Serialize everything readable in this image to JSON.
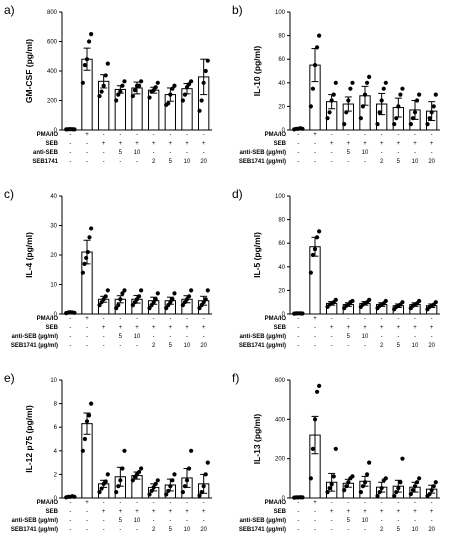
{
  "row_labels_full": [
    "PMA/IO",
    "SEB",
    "anti-SEB (µg/ml)",
    "SEB1741 (µg/ml)"
  ],
  "row_labels_short": [
    "PMA/IO",
    "SEB",
    "anti-SEB",
    "SEB1741"
  ],
  "treatment_table": [
    [
      "-",
      "+",
      "-",
      "-",
      "-",
      "-",
      "-",
      "-",
      "-"
    ],
    [
      "-",
      "-",
      "+",
      "+",
      "+",
      "+",
      "+",
      "+",
      "+"
    ],
    [
      "-",
      "-",
      "-",
      "5",
      "10",
      "-",
      "-",
      "-",
      "-"
    ],
    [
      "-",
      "-",
      "-",
      "-",
      "-",
      "2",
      "5",
      "10",
      "20"
    ]
  ],
  "chart_data": [
    {
      "panel": "a)",
      "type": "bar",
      "ylabel": "GM-CSF (pg/ml)",
      "ylim": [
        0,
        800
      ],
      "yticks": [
        0,
        200,
        400,
        600,
        800
      ],
      "rows": "short",
      "values": [
        5,
        480,
        330,
        275,
        285,
        270,
        240,
        280,
        360
      ],
      "errors": [
        2,
        75,
        45,
        25,
        40,
        20,
        45,
        35,
        120
      ],
      "points": [
        [
          4,
          5,
          6,
          5,
          4
        ],
        [
          320,
          440,
          480,
          600,
          650
        ],
        [
          230,
          260,
          300,
          370,
          450
        ],
        [
          200,
          240,
          260,
          300,
          330
        ],
        [
          230,
          270,
          300,
          300,
          330
        ],
        [
          220,
          260,
          270,
          290,
          320
        ],
        [
          170,
          180,
          240,
          280,
          300
        ],
        [
          200,
          240,
          290,
          310,
          330
        ],
        [
          130,
          200,
          320,
          400,
          470
        ]
      ]
    },
    {
      "panel": "b)",
      "type": "bar",
      "ylabel": "IL-10 (pg/ml)",
      "ylim": [
        0,
        100
      ],
      "yticks": [
        0,
        20,
        40,
        60,
        80,
        100
      ],
      "rows": "full",
      "values": [
        1,
        55,
        24,
        22,
        29,
        22,
        19,
        17,
        16
      ],
      "errors": [
        0.5,
        14,
        6,
        6,
        8,
        9,
        8,
        8,
        8
      ],
      "points": [
        [
          0.5,
          1,
          1,
          1.5,
          1
        ],
        [
          20,
          35,
          55,
          70,
          80
        ],
        [
          10,
          15,
          25,
          30,
          40
        ],
        [
          5,
          15,
          25,
          35,
          40
        ],
        [
          10,
          20,
          30,
          40,
          45
        ],
        [
          5,
          15,
          25,
          35,
          40
        ],
        [
          5,
          10,
          20,
          30,
          35
        ],
        [
          5,
          10,
          15,
          25,
          30
        ],
        [
          5,
          10,
          15,
          20,
          30
        ]
      ]
    },
    {
      "panel": "c)",
      "type": "bar",
      "ylabel": "IL-4 (pg/ml)",
      "ylim": [
        0,
        40
      ],
      "yticks": [
        0,
        10,
        20,
        30,
        40
      ],
      "rows": "full",
      "values": [
        0.5,
        21,
        5,
        5,
        5,
        4.5,
        4.5,
        5,
        4.5
      ],
      "errors": [
        0.2,
        4,
        1,
        1.2,
        1.3,
        1.2,
        1.2,
        1.2,
        1.5
      ],
      "points": [
        [
          0.3,
          0.5,
          0.6,
          0.5,
          0.4
        ],
        [
          14,
          17,
          19,
          21,
          26,
          29
        ],
        [
          3,
          4,
          5,
          6,
          8
        ],
        [
          2,
          3,
          5,
          7,
          8
        ],
        [
          3,
          4,
          5,
          6,
          8
        ],
        [
          2,
          3,
          4,
          5,
          7
        ],
        [
          2,
          3,
          4,
          5,
          7
        ],
        [
          3,
          4,
          5,
          6,
          8
        ],
        [
          2,
          3,
          4,
          5,
          8
        ]
      ]
    },
    {
      "panel": "d)",
      "type": "bar",
      "ylabel": "IL-5 (pg/ml)",
      "ylim": [
        0,
        100
      ],
      "yticks": [
        0,
        20,
        40,
        60,
        80,
        100
      ],
      "rows": "full",
      "values": [
        0.5,
        57,
        9,
        8,
        9,
        8,
        7,
        8,
        7
      ],
      "errors": [
        0.2,
        8,
        1.5,
        1.5,
        1.5,
        1.5,
        1.5,
        1.5,
        1.5
      ],
      "points": [
        [
          0.3,
          0.5,
          0.6,
          0.5,
          0.4
        ],
        [
          35,
          50,
          55,
          65,
          70
        ],
        [
          6,
          8,
          9,
          10,
          12
        ],
        [
          5,
          7,
          8,
          10,
          11
        ],
        [
          6,
          8,
          9,
          10,
          12
        ],
        [
          5,
          7,
          8,
          9,
          11
        ],
        [
          4,
          6,
          7,
          8,
          10
        ],
        [
          5,
          7,
          8,
          9,
          11
        ],
        [
          4,
          6,
          7,
          8,
          10
        ]
      ]
    },
    {
      "panel": "e)",
      "type": "bar",
      "ylabel": "IL-12 p75 (pg/ml)",
      "ylim": [
        0,
        10
      ],
      "yticks": [
        0,
        2,
        4,
        6,
        8,
        10
      ],
      "rows": "full",
      "values": [
        0.1,
        6.3,
        1.2,
        1.8,
        1.9,
        0.9,
        1.1,
        1.7,
        1.2
      ],
      "errors": [
        0.05,
        0.9,
        0.3,
        0.8,
        0.3,
        0.3,
        0.5,
        0.8,
        0.8
      ],
      "points": [
        [
          0.05,
          0.1,
          0.1,
          0.15,
          0.1
        ],
        [
          4,
          5,
          6.5,
          7,
          8
        ],
        [
          0.5,
          0.8,
          1.2,
          1.4,
          2
        ],
        [
          0.5,
          1,
          1.5,
          2.5,
          4
        ],
        [
          1.5,
          1.8,
          2,
          2.2,
          2.5
        ],
        [
          0.3,
          0.6,
          0.9,
          1.2,
          1.5
        ],
        [
          0.3,
          0.6,
          1,
          1.5,
          2
        ],
        [
          0.5,
          1,
          1.5,
          2.5,
          4
        ],
        [
          0.2,
          0.5,
          1,
          2,
          3
        ]
      ]
    },
    {
      "panel": "f)",
      "type": "bar",
      "ylabel": "IL-13 (pg/ml)",
      "ylim": [
        0,
        600
      ],
      "yticks": [
        0,
        200,
        400,
        600
      ],
      "rows": "full",
      "values": [
        3,
        320,
        80,
        75,
        85,
        55,
        60,
        55,
        45
      ],
      "errors": [
        1,
        95,
        45,
        20,
        25,
        25,
        30,
        25,
        20
      ],
      "points": [
        [
          2,
          3,
          3,
          4,
          3
        ],
        [
          100,
          250,
          400,
          540,
          570
        ],
        [
          30,
          50,
          70,
          110,
          250
        ],
        [
          40,
          60,
          80,
          100,
          110
        ],
        [
          30,
          60,
          80,
          120,
          180
        ],
        [
          10,
          30,
          50,
          90,
          100
        ],
        [
          10,
          30,
          50,
          80,
          200
        ],
        [
          20,
          40,
          60,
          80,
          100
        ],
        [
          10,
          20,
          40,
          60,
          80
        ]
      ]
    }
  ]
}
